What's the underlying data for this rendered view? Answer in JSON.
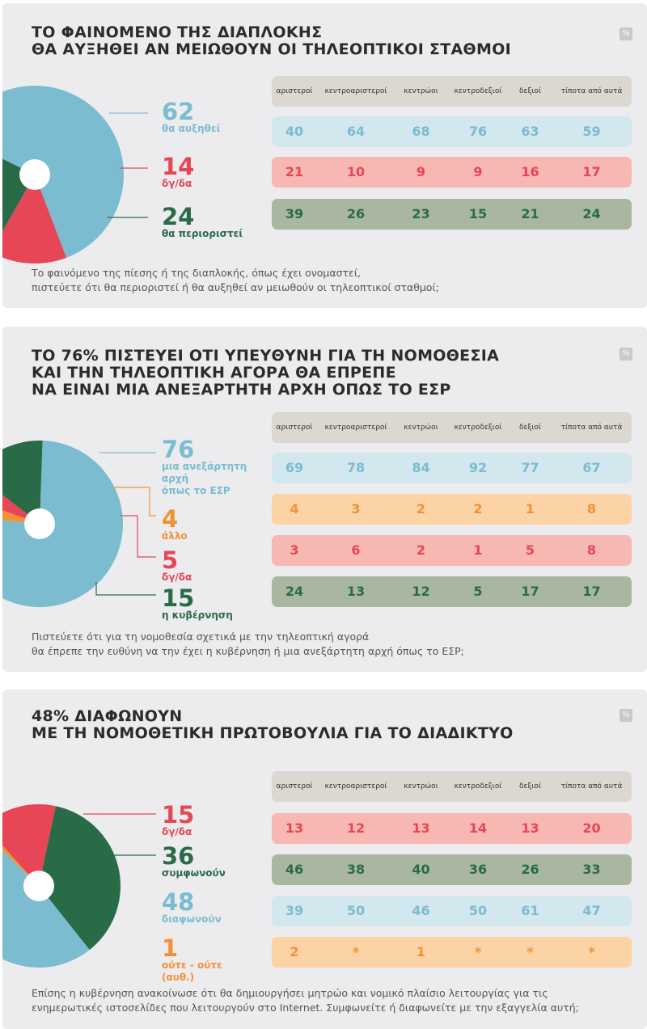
{
  "colors": {
    "blue": "#7bbcd0",
    "red": "#e64656",
    "green": "#2a6b47",
    "orange": "#f29234",
    "row_blue": "#d2e7ee",
    "row_red": "#f7b7b2",
    "row_green": "#a9b7a0",
    "row_orange": "#fbd3a4",
    "row_header": "#ddd7d2"
  },
  "column_headers": [
    "αριστεροί",
    "κεντροαριστεροί",
    "κεντρώοι",
    "κεντροδεξιοί",
    "δεξιοί",
    "τίποτα από αυτά"
  ],
  "panels": [
    {
      "title_lines": [
        "ΤΟ ΦΑΙΝΟΜΕΝΟ ΤΗΣ ΔΙΑΠΛΟΚΗΣ",
        "ΘΑ ΑΥΞΗΘΕΙ ΑΝ ΜΕΙΩΘΟΥΝ ΟΙ ΤΗΛΕΟΠΤΙΚΟΙ ΣΤΑΘΜΟΙ"
      ],
      "unit": "%",
      "question_lines": [
        "Το φαινόμενο της πίεσης ή της διαπλοκής, όπως έχει ονομαστεί,",
        "πιστεύετε ότι θα περιοριστεί ή θα αυξηθεί αν μειωθούν οι τηλεοπτικοί σταθμοί;"
      ]
    },
    {
      "title_lines": [
        "ΤΟ 76% ΠΙΣΤΕΥΕΙ ΟΤΙ ΥΠΕΥΘΥΝΗ ΓΙΑ ΤΗ ΝΟΜΟΘΕΣΙΑ",
        "ΚΑΙ ΤΗΝ ΤΗΛΕΟΠΤΙΚΗ ΑΓΟΡΑ ΘΑ ΕΠΡΕΠΕ",
        "ΝΑ ΕΙΝΑΙ ΜΙΑ ΑΝΕΞΑΡΤΗΤΗ ΑΡΧΗ ΟΠΩΣ ΤΟ ΕΣΡ"
      ],
      "unit": "%",
      "question_lines": [
        "Πιστεύετε ότι για τη νομοθεσία σχετικά με την τηλεοπτική αγορά",
        "θα έπρεπε την ευθύνη να την έχει η κυβέρνηση ή μια ανεξάρτητη αρχή όπως το ΕΣΡ;"
      ]
    },
    {
      "title_lines": [
        "48% ΔΙΑΦΩΝΟΥΝ",
        "ΜΕ ΤΗ ΝΟΜΟΘΕΤΙΚΗ ΠΡΩΤΟΒΟΥΛΙΑ ΓΙΑ ΤΟ ΔΙΑΔΙΚΤΥΟ"
      ],
      "unit": "%",
      "question_lines": [
        "Επίσης η κυβέρνηση ανακοίνωσε ότι θα δημιουργήσει μητρώο και νομικό πλαίσιο λειτουργίας για τις",
        "ενημερωτικές ιστοσελίδες που λειτουργούν στο Internet. Συμφωνείτε ή διαφωνείτε με την εξαγγελία αυτή;"
      ]
    }
  ],
  "chart_data": [
    {
      "type": "pie",
      "title": "ΤΟ ΦΑΙΝΟΜΕΝΟ ΤΗΣ ΔΙΑΠΛΟΚΗΣ ΘΑ ΑΥΞΗΘΕΙ ΑΝ ΜΕΙΩΘΟΥΝ ΟΙ ΤΗΛΕΟΠΤΙΚΟΙ ΣΤΑΘΜΟΙ",
      "unit": "%",
      "slices": [
        {
          "value": 62,
          "value_label": "62",
          "label_lines": [
            "θα αυξηθεί"
          ],
          "color": "#7bbcd0"
        },
        {
          "value": 14,
          "value_label": "14",
          "label_lines": [
            "δγ/δα"
          ],
          "color": "#e64656"
        },
        {
          "value": 24,
          "value_label": "24",
          "label_lines": [
            "θα περιοριστεί"
          ],
          "color": "#2a6b47"
        }
      ],
      "table": {
        "columns": [
          "αριστεροί",
          "κεντροαριστεροί",
          "κεντρώοι",
          "κεντροδεξιοί",
          "δεξιοί",
          "τίποτα από αυτά"
        ],
        "rows": [
          {
            "series": "θα αυξηθεί",
            "color": "#7bbcd0",
            "bg": "#d2e7ee",
            "values": [
              "40",
              "64",
              "68",
              "76",
              "63",
              "59"
            ]
          },
          {
            "series": "δγ/δα",
            "color": "#e64656",
            "bg": "#f7b7b2",
            "values": [
              "21",
              "10",
              "9",
              "9",
              "16",
              "17"
            ]
          },
          {
            "series": "θα περιοριστεί",
            "color": "#2a6b47",
            "bg": "#a9b7a0",
            "values": [
              "39",
              "26",
              "23",
              "15",
              "21",
              "24"
            ]
          }
        ]
      }
    },
    {
      "type": "pie",
      "title": "ΤΟ 76% ΠΙΣΤΕΥΕΙ ΟΤΙ ΥΠΕΥΘΥΝΗ ΓΙΑ ΤΗ ΝΟΜΟΘΕΣΙΑ ΚΑΙ ΤΗΝ ΤΗΛΕΟΠΤΙΚΗ ΑΓΟΡΑ ΘΑ ΕΠΡΕΠΕ ΝΑ ΕΙΝΑΙ ΜΙΑ ΑΝΕΞΑΡΤΗΤΗ ΑΡΧΗ ΟΠΩΣ ΤΟ ΕΣΡ",
      "unit": "%",
      "slices": [
        {
          "value": 76,
          "value_label": "76",
          "label_lines": [
            "μια ανεξάρτητη",
            "αρχή",
            "όπως το ΕΣΡ"
          ],
          "color": "#7bbcd0"
        },
        {
          "value": 4,
          "value_label": "4",
          "label_lines": [
            "άλλο"
          ],
          "color": "#f29234"
        },
        {
          "value": 5,
          "value_label": "5",
          "label_lines": [
            "δγ/δα"
          ],
          "color": "#e64656"
        },
        {
          "value": 15,
          "value_label": "15",
          "label_lines": [
            "η κυβέρνηση"
          ],
          "color": "#2a6b47"
        }
      ],
      "table": {
        "columns": [
          "αριστεροί",
          "κεντροαριστεροί",
          "κεντρώοι",
          "κεντροδεξιοί",
          "δεξιοί",
          "τίποτα από αυτά"
        ],
        "rows": [
          {
            "series": "μια ανεξάρτητη αρχή όπως το ΕΣΡ",
            "color": "#7bbcd0",
            "bg": "#d2e7ee",
            "values": [
              "69",
              "78",
              "84",
              "92",
              "77",
              "67"
            ]
          },
          {
            "series": "άλλο",
            "color": "#f29234",
            "bg": "#fbd3a4",
            "values": [
              "4",
              "3",
              "2",
              "2",
              "1",
              "8"
            ]
          },
          {
            "series": "δγ/δα",
            "color": "#e64656",
            "bg": "#f7b7b2",
            "values": [
              "3",
              "6",
              "2",
              "1",
              "5",
              "8"
            ]
          },
          {
            "series": "η κυβέρνηση",
            "color": "#2a6b47",
            "bg": "#a9b7a0",
            "values": [
              "24",
              "13",
              "12",
              "5",
              "17",
              "17"
            ]
          }
        ]
      }
    },
    {
      "type": "pie",
      "title": "48% ΔΙΑΦΩΝΟΥΝ ΜΕ ΤΗ ΝΟΜΟΘΕΤΙΚΗ ΠΡΩΤΟΒΟΥΛΙΑ ΓΙΑ ΤΟ ΔΙΑΔΙΚΤΥΟ",
      "unit": "%",
      "slices": [
        {
          "value": 15,
          "value_label": "15",
          "label_lines": [
            "δγ/δα"
          ],
          "color": "#e64656"
        },
        {
          "value": 36,
          "value_label": "36",
          "label_lines": [
            "συμφωνούν"
          ],
          "color": "#2a6b47"
        },
        {
          "value": 48,
          "value_label": "48",
          "label_lines": [
            "διαφωνούν"
          ],
          "color": "#7bbcd0"
        },
        {
          "value": 1,
          "value_label": "1",
          "label_lines": [
            "ούτε - ούτε",
            "(αυθ.)"
          ],
          "color": "#f29234"
        }
      ],
      "table": {
        "columns": [
          "αριστεροί",
          "κεντροαριστεροί",
          "κεντρώοι",
          "κεντροδεξιοί",
          "δεξιοί",
          "τίποτα από αυτά"
        ],
        "rows": [
          {
            "series": "δγ/δα",
            "color": "#e64656",
            "bg": "#f7b7b2",
            "values": [
              "13",
              "12",
              "13",
              "14",
              "13",
              "20"
            ]
          },
          {
            "series": "συμφωνούν",
            "color": "#2a6b47",
            "bg": "#a9b7a0",
            "values": [
              "46",
              "38",
              "40",
              "36",
              "26",
              "33"
            ]
          },
          {
            "series": "διαφωνούν",
            "color": "#7bbcd0",
            "bg": "#d2e7ee",
            "values": [
              "39",
              "50",
              "46",
              "50",
              "61",
              "47"
            ]
          },
          {
            "series": "ούτε - ούτε (αυθ.)",
            "color": "#f29234",
            "bg": "#fbd3a4",
            "values": [
              "2",
              "*",
              "1",
              "*",
              "*",
              "*"
            ]
          }
        ]
      }
    }
  ]
}
